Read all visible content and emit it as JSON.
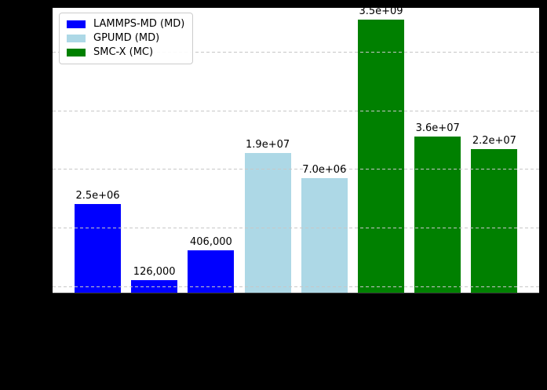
{
  "figure": {
    "background_color": "#000000",
    "plot_background_color": "#ffffff",
    "grid_color": "#c7c7c7"
  },
  "legend": {
    "entries": [
      {
        "label": "LAMMPS-MD (MD)",
        "color": "#0000ff"
      },
      {
        "label": "GPUMD (MD)",
        "color": "#add8e6"
      },
      {
        "label": "SMC-X (MC)",
        "color": "#008000"
      }
    ]
  },
  "chart_data": {
    "type": "bar",
    "title": "",
    "xlabel": "",
    "ylabel": "",
    "yscale": "log",
    "ylim": [
      78000,
      5600000000
    ],
    "grid": "dashed-horizontal",
    "gridline_values": [
      100000,
      1000000,
      10000000,
      100000000,
      1000000000
    ],
    "legend_position": "upper-left",
    "bars": [
      {
        "group": "LAMMPS-MD (MD)",
        "value": 2500000,
        "label": "2.5e+06",
        "color": "#0000ff"
      },
      {
        "group": "LAMMPS-MD (MD)",
        "value": 126000,
        "label": "126,000",
        "color": "#0000ff"
      },
      {
        "group": "LAMMPS-MD (MD)",
        "value": 406000,
        "label": "406,000",
        "color": "#0000ff"
      },
      {
        "group": "GPUMD (MD)",
        "value": 19000000,
        "label": "1.9e+07",
        "color": "#add8e6"
      },
      {
        "group": "GPUMD (MD)",
        "value": 7000000,
        "label": "7.0e+06",
        "color": "#add8e6"
      },
      {
        "group": "SMC-X (MC)",
        "value": 3500000000,
        "label": "3.5e+09",
        "color": "#008000"
      },
      {
        "group": "SMC-X (MC)",
        "value": 36000000,
        "label": "3.6e+07",
        "color": "#008000"
      },
      {
        "group": "SMC-X (MC)",
        "value": 22000000,
        "label": "2.2e+07",
        "color": "#008000"
      }
    ]
  }
}
